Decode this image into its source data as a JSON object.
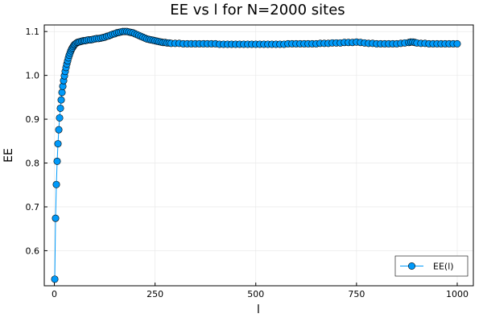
{
  "chart_data": {
    "type": "scatter",
    "title": "EE vs l for N=2000 sites",
    "xlabel": "l",
    "ylabel": "EE",
    "xlim": [
      -25,
      1040
    ],
    "ylim": [
      0.52,
      1.115
    ],
    "xticks": [
      0,
      250,
      500,
      750,
      1000
    ],
    "yticks": [
      0.6,
      0.7,
      0.8,
      0.9,
      1.0,
      1.1
    ],
    "xtick_labels": [
      "0",
      "250",
      "500",
      "750",
      "1000"
    ],
    "ytick_labels": [
      "0.6",
      "0.7",
      "0.8",
      "0.9",
      "1.0",
      "1.1"
    ],
    "grid": true,
    "legend_position": "bottom-right",
    "series": [
      {
        "name": "EE(l)",
        "color": "#009AFA",
        "marker": "circle",
        "line": true,
        "points": [
          [
            1,
            0.535
          ],
          [
            3,
            0.674
          ],
          [
            5,
            0.751
          ],
          [
            7,
            0.804
          ],
          [
            9,
            0.844
          ],
          [
            11,
            0.876
          ],
          [
            13,
            0.903
          ],
          [
            15,
            0.925
          ],
          [
            17,
            0.944
          ],
          [
            19,
            0.961
          ],
          [
            21,
            0.975
          ],
          [
            23,
            0.988
          ],
          [
            25,
            0.999
          ],
          [
            27,
            1.009
          ],
          [
            29,
            1.018
          ],
          [
            31,
            1.026
          ],
          [
            33,
            1.033
          ],
          [
            35,
            1.04
          ],
          [
            37,
            1.046
          ],
          [
            39,
            1.051
          ],
          [
            41,
            1.056
          ],
          [
            43,
            1.06
          ],
          [
            45,
            1.063
          ],
          [
            47,
            1.066
          ],
          [
            49,
            1.069
          ],
          [
            51,
            1.071
          ],
          [
            54,
            1.073
          ],
          [
            57,
            1.075
          ],
          [
            60,
            1.076
          ],
          [
            64,
            1.077
          ],
          [
            68,
            1.078
          ],
          [
            72,
            1.079
          ],
          [
            76,
            1.079
          ],
          [
            80,
            1.08
          ],
          [
            85,
            1.081
          ],
          [
            90,
            1.081
          ],
          [
            95,
            1.082
          ],
          [
            100,
            1.083
          ],
          [
            105,
            1.084
          ],
          [
            110,
            1.084
          ],
          [
            115,
            1.085
          ],
          [
            120,
            1.086
          ],
          [
            125,
            1.087
          ],
          [
            130,
            1.089
          ],
          [
            135,
            1.09
          ],
          [
            140,
            1.092
          ],
          [
            145,
            1.094
          ],
          [
            150,
            1.095
          ],
          [
            155,
            1.097
          ],
          [
            160,
            1.098
          ],
          [
            165,
            1.099
          ],
          [
            170,
            1.1
          ],
          [
            175,
            1.1
          ],
          [
            180,
            1.1
          ],
          [
            185,
            1.099
          ],
          [
            190,
            1.098
          ],
          [
            195,
            1.097
          ],
          [
            200,
            1.095
          ],
          [
            205,
            1.093
          ],
          [
            210,
            1.091
          ],
          [
            215,
            1.089
          ],
          [
            220,
            1.087
          ],
          [
            225,
            1.085
          ],
          [
            230,
            1.083
          ],
          [
            235,
            1.082
          ],
          [
            240,
            1.081
          ],
          [
            245,
            1.08
          ],
          [
            250,
            1.079
          ],
          [
            255,
            1.078
          ],
          [
            260,
            1.077
          ],
          [
            265,
            1.076
          ],
          [
            270,
            1.075
          ],
          [
            275,
            1.075
          ],
          [
            280,
            1.074
          ],
          [
            285,
            1.074
          ],
          [
            290,
            1.073
          ],
          [
            300,
            1.073
          ],
          [
            310,
            1.073
          ],
          [
            320,
            1.072
          ],
          [
            330,
            1.072
          ],
          [
            340,
            1.072
          ],
          [
            350,
            1.072
          ],
          [
            360,
            1.072
          ],
          [
            370,
            1.072
          ],
          [
            380,
            1.072
          ],
          [
            390,
            1.072
          ],
          [
            400,
            1.072
          ],
          [
            410,
            1.071
          ],
          [
            420,
            1.071
          ],
          [
            430,
            1.071
          ],
          [
            440,
            1.071
          ],
          [
            450,
            1.071
          ],
          [
            460,
            1.071
          ],
          [
            470,
            1.071
          ],
          [
            480,
            1.071
          ],
          [
            490,
            1.071
          ],
          [
            500,
            1.071
          ],
          [
            510,
            1.071
          ],
          [
            520,
            1.071
          ],
          [
            530,
            1.071
          ],
          [
            540,
            1.071
          ],
          [
            550,
            1.071
          ],
          [
            560,
            1.071
          ],
          [
            570,
            1.071
          ],
          [
            580,
            1.072
          ],
          [
            590,
            1.072
          ],
          [
            600,
            1.072
          ],
          [
            610,
            1.072
          ],
          [
            620,
            1.072
          ],
          [
            630,
            1.072
          ],
          [
            640,
            1.072
          ],
          [
            650,
            1.072
          ],
          [
            660,
            1.073
          ],
          [
            670,
            1.073
          ],
          [
            680,
            1.073
          ],
          [
            690,
            1.074
          ],
          [
            700,
            1.074
          ],
          [
            710,
            1.074
          ],
          [
            720,
            1.075
          ],
          [
            730,
            1.075
          ],
          [
            740,
            1.075
          ],
          [
            750,
            1.076
          ],
          [
            760,
            1.075
          ],
          [
            770,
            1.074
          ],
          [
            780,
            1.073
          ],
          [
            790,
            1.073
          ],
          [
            800,
            1.072
          ],
          [
            810,
            1.072
          ],
          [
            820,
            1.072
          ],
          [
            830,
            1.072
          ],
          [
            840,
            1.072
          ],
          [
            850,
            1.072
          ],
          [
            860,
            1.073
          ],
          [
            870,
            1.074
          ],
          [
            880,
            1.075
          ],
          [
            885,
            1.076
          ],
          [
            890,
            1.076
          ],
          [
            895,
            1.075
          ],
          [
            900,
            1.074
          ],
          [
            910,
            1.073
          ],
          [
            920,
            1.073
          ],
          [
            930,
            1.072
          ],
          [
            940,
            1.072
          ],
          [
            950,
            1.072
          ],
          [
            960,
            1.072
          ],
          [
            970,
            1.072
          ],
          [
            980,
            1.072
          ],
          [
            990,
            1.072
          ],
          [
            1000,
            1.072
          ]
        ]
      }
    ]
  }
}
